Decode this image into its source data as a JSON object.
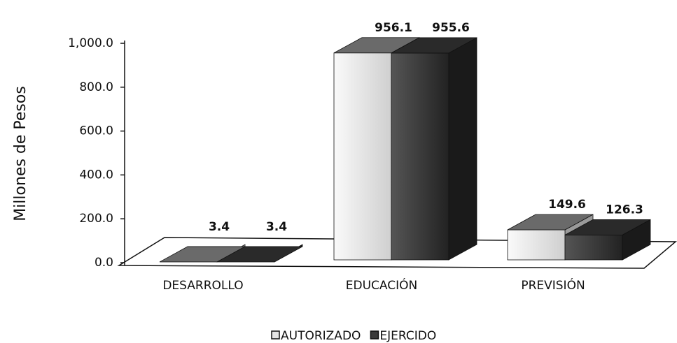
{
  "chart_data": {
    "type": "bar3d",
    "y_label": "Millones de Pesos",
    "categories": [
      "DESARROLLO",
      "EDUCACIÓN",
      "PREVISIÓN"
    ],
    "series": [
      {
        "name": "AUTORIZADO",
        "color": "#e4e4e4",
        "values": [
          3.4,
          956.1,
          149.6
        ]
      },
      {
        "name": "EJERCIDO",
        "color": "#3a3a3a",
        "values": [
          3.4,
          955.6,
          126.3
        ]
      }
    ],
    "ylim": [
      0,
      1000
    ],
    "yticks": [
      {
        "value": 0,
        "label": "0.0"
      },
      {
        "value": 200,
        "label": "200.0"
      },
      {
        "value": 400,
        "label": "400.0"
      },
      {
        "value": 600,
        "label": "600.0"
      },
      {
        "value": 800,
        "label": "800.0"
      },
      {
        "value": 1000,
        "label": "1,000.0"
      }
    ],
    "legend": "bottom"
  }
}
